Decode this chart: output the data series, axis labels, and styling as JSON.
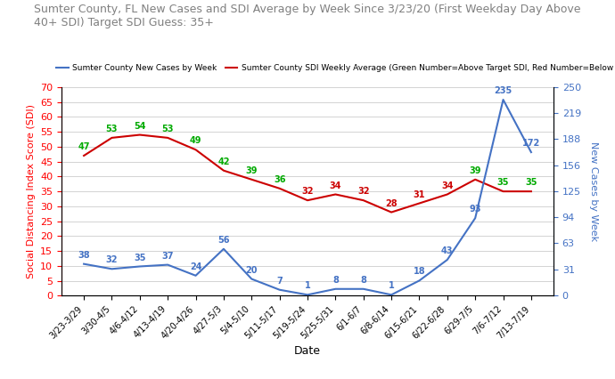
{
  "title": "Sumter County, FL New Cases and SDI Average by Week Since 3/23/20 (First Weekday Day Above\n40+ SDI) Target SDI Guess: 35+",
  "xlabel": "Date",
  "ylabel_left": "Social Distancing Index Score (SDI)",
  "ylabel_right": "New Cases by Week",
  "legend_cases": "Sumter County New Cases by Week",
  "legend_sdi": "Sumter County SDI Weekly Average (Green Number=Above Target SDI, Red Number=Below Target SDI)",
  "x_labels": [
    "3/23-3/29",
    "3/30-4/5",
    "4/6-4/12",
    "4/13-4/19",
    "4/20-4/26",
    "4/27-5/3",
    "5/4-5/10",
    "5/11-5/17",
    "5/19-5/24",
    "5/25-5/31",
    "6/1-6/7",
    "6/8-6/14",
    "6/15-6/21",
    "6/22-6/28",
    "6/29-7/5",
    "7/6-7/12",
    "7/13-7/19"
  ],
  "sdi_values": [
    47,
    53,
    54,
    53,
    49,
    42,
    39,
    36,
    32,
    34,
    32,
    28,
    31,
    34,
    39,
    35,
    35
  ],
  "cases_values": [
    38,
    32,
    35,
    37,
    24,
    56,
    20,
    7,
    1,
    8,
    8,
    1,
    18,
    43,
    93,
    235,
    172
  ],
  "target_sdi": 35,
  "sdi_above_color": "#00aa00",
  "sdi_below_color": "#cc0000",
  "cases_line_color": "#4472c4",
  "sdi_line_color": "#cc0000",
  "background_color": "#ffffff",
  "left_ylim": [
    0,
    70
  ],
  "left_yticks": [
    0,
    5,
    10,
    15,
    20,
    25,
    30,
    35,
    40,
    45,
    50,
    55,
    60,
    65,
    70
  ],
  "right_ylim": [
    0,
    250
  ],
  "right_yticks": [
    0,
    31,
    63,
    94,
    125,
    156,
    188,
    219,
    250
  ]
}
